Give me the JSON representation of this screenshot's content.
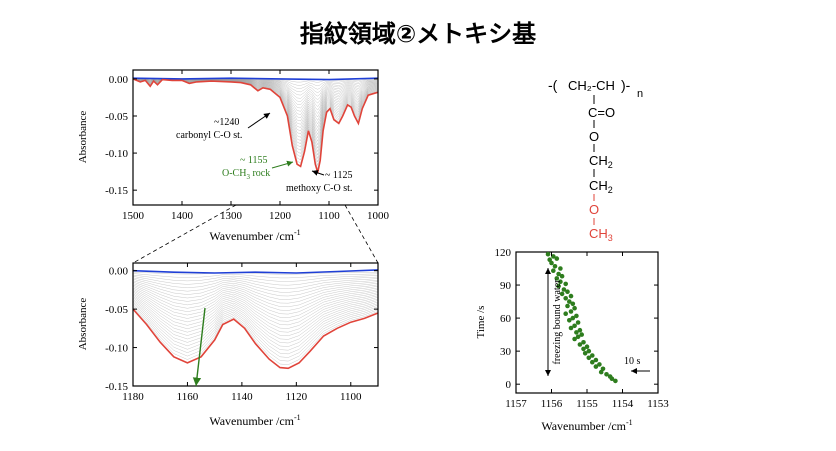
{
  "slide_title": "指紋領域②メトキシ基",
  "colors": {
    "green": "#2e7d1e",
    "red": "#e0443a",
    "blue": "#1f3fd6",
    "gray": "#9a9a9a"
  },
  "structure": {
    "repeat_unit": "CH₂-CH",
    "subscript": "n",
    "carbonyl": "C=O",
    "o_atom": "O",
    "ch2": "CH",
    "ch2_sub": "2",
    "ch3": "CH",
    "ch3_sub": "3"
  },
  "chart_data": [
    {
      "type": "line",
      "xlabel": "Wavenumber /cm",
      "xlabel_sup": "-1",
      "ylabel": "Absorbance",
      "xlim": [
        1500,
        1000
      ],
      "ylim": [
        -0.17,
        0.012
      ],
      "xticks": [
        "1500",
        "1400",
        "1300",
        "1200",
        "1100",
        "1000"
      ],
      "yticks": [
        "0.00",
        "-0.05",
        "-0.10",
        "-0.15"
      ],
      "annotations": {
        "carbonyl_1": "~1240",
        "carbonyl_2": "carbonyl C-O st.",
        "rock_1": "~ 1155",
        "rock_2": "O-CH",
        "rock_sub": "3",
        "rock_3": "rock",
        "methoxy_1": "~ 1125",
        "methoxy_2": "methoxy C-O st."
      },
      "series": [
        {
          "color": "red",
          "points": [
            [
              1500,
              0
            ],
            [
              1485,
              -0.004
            ],
            [
              1475,
              -0.002
            ],
            [
              1465,
              -0.01
            ],
            [
              1458,
              -0.003
            ],
            [
              1450,
              -0.008
            ],
            [
              1440,
              -0.001
            ],
            [
              1420,
              -0.002
            ],
            [
              1400,
              -0.002
            ],
            [
              1385,
              -0.006
            ],
            [
              1370,
              -0.004
            ],
            [
              1340,
              -0.003
            ],
            [
              1300,
              -0.004
            ],
            [
              1280,
              -0.005
            ],
            [
              1260,
              -0.008
            ],
            [
              1245,
              -0.016
            ],
            [
              1235,
              -0.012
            ],
            [
              1220,
              -0.014
            ],
            [
              1200,
              -0.025
            ],
            [
              1185,
              -0.05
            ],
            [
              1175,
              -0.09
            ],
            [
              1165,
              -0.115
            ],
            [
              1158,
              -0.118
            ],
            [
              1150,
              -0.098
            ],
            [
              1142,
              -0.07
            ],
            [
              1135,
              -0.085
            ],
            [
              1128,
              -0.115
            ],
            [
              1123,
              -0.126
            ],
            [
              1118,
              -0.11
            ],
            [
              1112,
              -0.07
            ],
            [
              1105,
              -0.045
            ],
            [
              1098,
              -0.04
            ],
            [
              1090,
              -0.055
            ],
            [
              1080,
              -0.06
            ],
            [
              1072,
              -0.05
            ],
            [
              1062,
              -0.035
            ],
            [
              1055,
              -0.038
            ],
            [
              1048,
              -0.05
            ],
            [
              1040,
              -0.06
            ],
            [
              1032,
              -0.04
            ],
            [
              1020,
              -0.022
            ],
            [
              1010,
              -0.02
            ],
            [
              1000,
              -0.018
            ]
          ]
        },
        {
          "color": "blue",
          "points": [
            [
              1500,
              0.001
            ],
            [
              1400,
              0.0
            ],
            [
              1300,
              0.001
            ],
            [
              1200,
              0.0
            ],
            [
              1100,
              -0.001
            ],
            [
              1000,
              0.001
            ]
          ]
        }
      ]
    },
    {
      "type": "line",
      "xlabel": "Wavenumber /cm",
      "xlabel_sup": "-1",
      "ylabel": "Absorbance",
      "xlim": [
        1180,
        1090
      ],
      "ylim": [
        -0.15,
        0.01
      ],
      "xticks": [
        "1180",
        "1160",
        "1140",
        "1120",
        "1100"
      ],
      "yticks": [
        "0.00",
        "-0.05",
        "-0.10",
        "-0.15"
      ],
      "series": [
        {
          "color": "red",
          "points": [
            [
              1180,
              -0.05
            ],
            [
              1175,
              -0.07
            ],
            [
              1170,
              -0.093
            ],
            [
              1165,
              -0.112
            ],
            [
              1160,
              -0.12
            ],
            [
              1155,
              -0.112
            ],
            [
              1150,
              -0.09
            ],
            [
              1147,
              -0.07
            ],
            [
              1143,
              -0.063
            ],
            [
              1139,
              -0.075
            ],
            [
              1135,
              -0.095
            ],
            [
              1130,
              -0.115
            ],
            [
              1126,
              -0.126
            ],
            [
              1123,
              -0.127
            ],
            [
              1119,
              -0.12
            ],
            [
              1115,
              -0.105
            ],
            [
              1110,
              -0.085
            ],
            [
              1105,
              -0.075
            ],
            [
              1100,
              -0.067
            ],
            [
              1095,
              -0.062
            ],
            [
              1090,
              -0.055
            ]
          ]
        },
        {
          "color": "blue",
          "points": [
            [
              1180,
              0.0
            ],
            [
              1165,
              -0.002
            ],
            [
              1150,
              -0.003
            ],
            [
              1135,
              -0.002
            ],
            [
              1120,
              -0.003
            ],
            [
              1105,
              -0.001
            ],
            [
              1090,
              0.001
            ]
          ]
        }
      ]
    },
    {
      "type": "scatter",
      "xlabel": "Wavenumber /cm",
      "xlabel_sup": "-1",
      "ylabel": "Time /s",
      "xlim": [
        1157,
        1153
      ],
      "ylim": [
        -8,
        120
      ],
      "xticks": [
        "1157",
        "1156",
        "1155",
        "1154",
        "1153"
      ],
      "yticks": [
        "120",
        "90",
        "60",
        "30",
        "0"
      ],
      "annotations": {
        "freeze": "freezing bound water",
        "ten_s": "10 s"
      },
      "points": [
        [
          1156.1,
          118
        ],
        [
          1155.95,
          116
        ],
        [
          1156.05,
          113
        ],
        [
          1155.85,
          114
        ],
        [
          1156.0,
          110
        ],
        [
          1155.9,
          107
        ],
        [
          1155.75,
          105
        ],
        [
          1155.95,
          103
        ],
        [
          1155.8,
          100
        ],
        [
          1155.7,
          98
        ],
        [
          1155.85,
          96
        ],
        [
          1155.75,
          93
        ],
        [
          1155.6,
          91
        ],
        [
          1155.8,
          89
        ],
        [
          1155.65,
          86
        ],
        [
          1155.55,
          84
        ],
        [
          1155.7,
          82
        ],
        [
          1155.45,
          80
        ],
        [
          1155.6,
          78
        ],
        [
          1155.5,
          75
        ],
        [
          1155.4,
          73
        ],
        [
          1155.55,
          71
        ],
        [
          1155.35,
          69
        ],
        [
          1155.45,
          66
        ],
        [
          1155.6,
          64
        ],
        [
          1155.3,
          62
        ],
        [
          1155.4,
          60
        ],
        [
          1155.5,
          58
        ],
        [
          1155.25,
          56
        ],
        [
          1155.35,
          53
        ],
        [
          1155.45,
          51
        ],
        [
          1155.2,
          49
        ],
        [
          1155.3,
          47
        ],
        [
          1155.15,
          45
        ],
        [
          1155.25,
          43
        ],
        [
          1155.35,
          41
        ],
        [
          1155.1,
          38
        ],
        [
          1155.2,
          36
        ],
        [
          1155.0,
          34
        ],
        [
          1155.1,
          32
        ],
        [
          1154.95,
          30
        ],
        [
          1155.05,
          28
        ],
        [
          1154.85,
          26
        ],
        [
          1154.95,
          24
        ],
        [
          1154.75,
          22
        ],
        [
          1154.85,
          20
        ],
        [
          1154.65,
          18
        ],
        [
          1154.75,
          16
        ],
        [
          1154.55,
          14
        ],
        [
          1154.6,
          11
        ],
        [
          1154.45,
          9
        ],
        [
          1154.35,
          7
        ],
        [
          1154.3,
          5
        ],
        [
          1154.2,
          3
        ]
      ]
    }
  ]
}
